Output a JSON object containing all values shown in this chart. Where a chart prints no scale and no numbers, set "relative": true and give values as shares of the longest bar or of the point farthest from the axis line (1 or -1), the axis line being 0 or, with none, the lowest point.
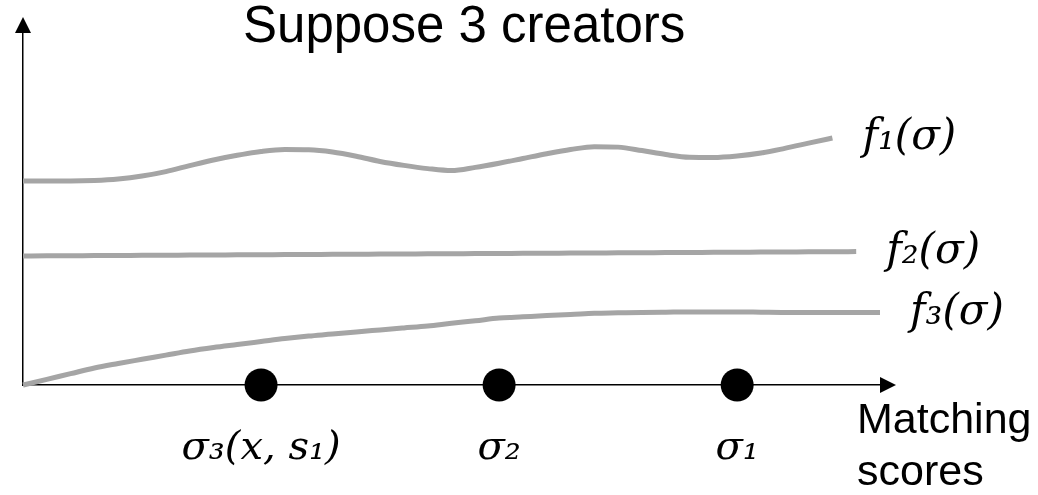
{
  "chart_data": {
    "type": "line",
    "title": "Suppose 3 creators",
    "xlabel": "Matching scores",
    "relative": true,
    "marker": "none",
    "line_style": "solid",
    "categories": [
      null,
      null,
      null,
      null,
      null,
      null,
      null,
      null,
      null,
      null,
      "σ₃(x, s₁)",
      null,
      null,
      null,
      null,
      null,
      null,
      null,
      null,
      null,
      "σ₂",
      null,
      null,
      null,
      null,
      null,
      null,
      null,
      null,
      null,
      "σ₁",
      null,
      null,
      null,
      null,
      null,
      null
    ],
    "series": [
      {
        "name": "f₁(σ)",
        "color": "#a5a5a5",
        "values": [
          0.826,
          0.826,
          0.826,
          0.828,
          0.834,
          0.846,
          0.864,
          0.888,
          0.911,
          0.93,
          0.945,
          0.953,
          0.952,
          0.943,
          0.926,
          0.905,
          0.889,
          0.876,
          0.868,
          0.881,
          0.898,
          0.917,
          0.936,
          0.953,
          0.965,
          0.963,
          0.949,
          0.933,
          0.922,
          0.921,
          0.927,
          0.939,
          0.958,
          0.979,
          1,
          null,
          null
        ]
      },
      {
        "name": "f₂(σ)",
        "color": "#a5a5a5",
        "values": [
          0.522,
          0.523,
          0.523,
          0.524,
          0.524,
          0.525,
          0.525,
          0.526,
          0.526,
          0.527,
          0.527,
          0.528,
          0.528,
          0.529,
          0.529,
          0.53,
          0.53,
          0.531,
          0.531,
          0.532,
          0.532,
          0.533,
          0.533,
          0.534,
          0.534,
          0.535,
          0.535,
          0.536,
          0.536,
          0.537,
          0.537,
          0.538,
          0.538,
          0.539,
          0.539,
          0.54,
          null
        ]
      },
      {
        "name": "f₃(σ)",
        "color": "#a5a5a5",
        "values": [
          0,
          0.023,
          0.046,
          0.069,
          0.087,
          0.104,
          0.121,
          0.138,
          0.152,
          0.164,
          0.176,
          0.188,
          0.198,
          0.206,
          0.215,
          0.223,
          0.231,
          0.239,
          0.25,
          0.26,
          0.271,
          0.276,
          0.281,
          0.285,
          0.29,
          0.292,
          0.294,
          0.295,
          0.296,
          0.296,
          0.296,
          0.295,
          0.294,
          0.294,
          0.294,
          0.293,
          0.293
        ]
      },
      {
        "type": "scatter",
        "color": "#000000",
        "marker": "circle",
        "values": [
          null,
          null,
          null,
          null,
          null,
          null,
          null,
          null,
          null,
          null,
          0,
          null,
          null,
          null,
          null,
          null,
          null,
          null,
          null,
          null,
          0,
          null,
          null,
          null,
          null,
          null,
          null,
          null,
          null,
          null,
          0,
          null,
          null,
          null,
          null,
          null,
          null
        ]
      }
    ]
  }
}
